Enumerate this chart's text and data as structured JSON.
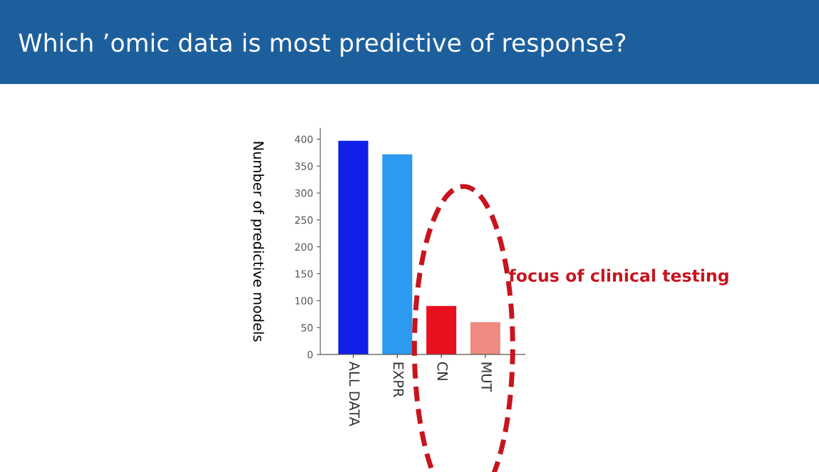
{
  "chart_data": {
    "type": "bar",
    "title": "Which ’omic data is most predictive of response?",
    "ylabel": "Number of predictive models",
    "categories": [
      "ALL DATA",
      "EXPR",
      "CN",
      "MUT"
    ],
    "values": [
      397,
      372,
      90,
      60
    ],
    "colors": [
      "#1020e8",
      "#2b9af0",
      "#e8101e",
      "#ee8a80"
    ],
    "ylim": [
      0,
      420
    ],
    "yticks": [
      0,
      50,
      100,
      150,
      200,
      250,
      300,
      350,
      400
    ],
    "grid": false,
    "legend": false,
    "annotations": [
      "focus of clinical testing"
    ]
  }
}
